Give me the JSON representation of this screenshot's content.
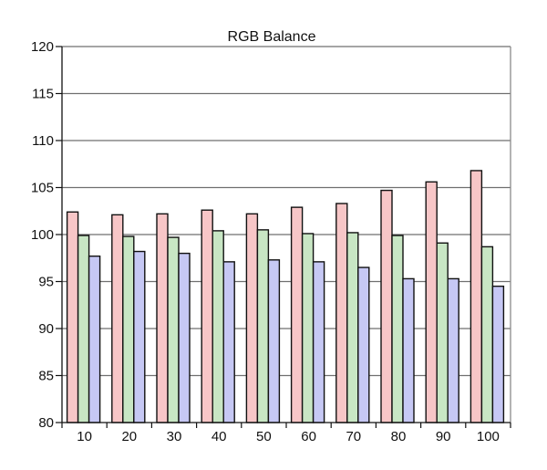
{
  "chart_data": {
    "type": "bar",
    "title": "RGB Balance",
    "xlabel": "",
    "ylabel": "",
    "categories": [
      "10",
      "20",
      "30",
      "40",
      "50",
      "60",
      "70",
      "80",
      "90",
      "100"
    ],
    "series": [
      {
        "color": "#f7c6c7",
        "values": [
          102.4,
          102.1,
          102.2,
          102.6,
          102.2,
          102.9,
          103.3,
          104.7,
          105.6,
          106.8
        ]
      },
      {
        "color": "#c8e6c4",
        "values": [
          99.9,
          99.8,
          99.7,
          100.4,
          100.5,
          100.1,
          100.2,
          99.9,
          99.1,
          98.7
        ]
      },
      {
        "color": "#c6c8f4",
        "values": [
          97.7,
          98.2,
          98.0,
          97.1,
          97.3,
          97.1,
          96.5,
          95.3,
          95.3,
          94.5
        ]
      }
    ],
    "ylim": [
      80,
      120
    ],
    "yticks": [
      80,
      85,
      90,
      95,
      100,
      105,
      110,
      115,
      120
    ],
    "grid": true,
    "legend": "none"
  }
}
